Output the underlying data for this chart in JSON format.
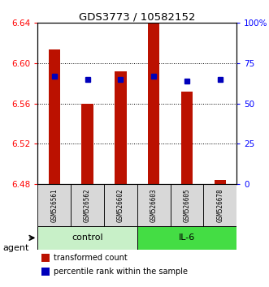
{
  "title": "GDS3773 / 10582152",
  "samples": [
    "GSM526561",
    "GSM526562",
    "GSM526602",
    "GSM526603",
    "GSM526605",
    "GSM526678"
  ],
  "bar_tops": [
    6.614,
    6.56,
    6.592,
    6.64,
    6.572,
    6.484
  ],
  "bar_base": 6.48,
  "percentile_values": [
    6.587,
    6.584,
    6.584,
    6.587,
    6.582,
    6.584
  ],
  "ylim_left": [
    6.48,
    6.64
  ],
  "yticks_left": [
    6.48,
    6.52,
    6.56,
    6.6,
    6.64
  ],
  "yticks_right_vals": [
    0,
    25,
    50,
    75,
    100
  ],
  "bar_color": "#BB1100",
  "dot_color": "#0000BB",
  "control_color": "#C8F0C8",
  "il6_color": "#44DD44",
  "sample_box_color": "#D8D8D8",
  "legend_bar_label": "transformed count",
  "legend_dot_label": "percentile rank within the sample",
  "agent_label": "agent"
}
